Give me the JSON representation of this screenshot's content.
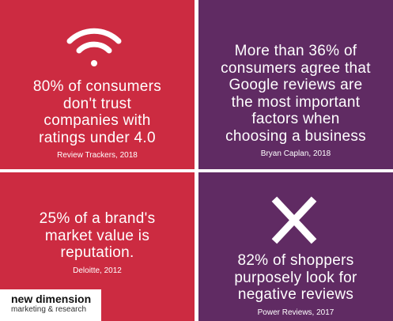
{
  "panels": [
    {
      "lines": [
        "80% of consumers",
        "don't trust",
        "companies with",
        "ratings under 4.0"
      ],
      "source": "Review Trackers, 2018"
    },
    {
      "lines": [
        "More than 36% of",
        "consumers agree that",
        "Google reviews are",
        "the most important",
        "factors when",
        "choosing a business"
      ],
      "source": "Bryan Caplan, 2018"
    },
    {
      "lines": [
        "25% of a brand's",
        "market value is",
        "reputation."
      ],
      "source": "Deloitte, 2012"
    },
    {
      "lines": [
        "82% of shoppers",
        "purposely look for",
        "negative reviews"
      ],
      "source": "Power Reviews, 2017"
    }
  ],
  "logo": {
    "name": "new dimension",
    "tagline": "marketing & research"
  }
}
